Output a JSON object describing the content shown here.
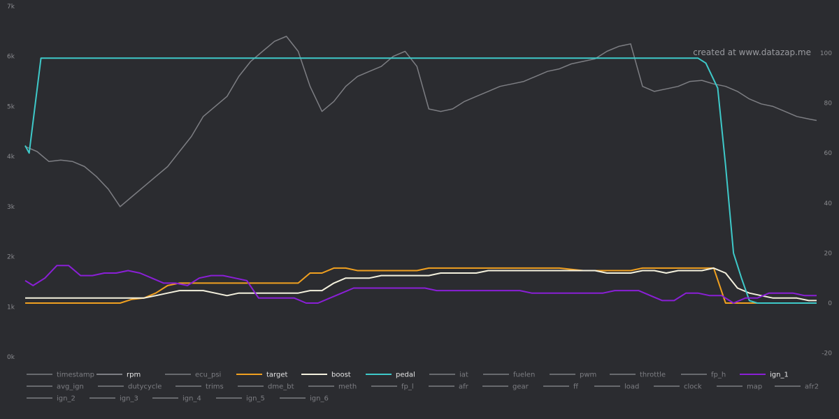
{
  "chart_data": {
    "type": "line",
    "watermark": "created at www.datazap.me",
    "left_axis": {
      "ticks": [
        "0k",
        "1k",
        "2k",
        "3k",
        "4k",
        "5k",
        "6k",
        "7k"
      ],
      "range": [
        0,
        7000
      ]
    },
    "right_axis": {
      "ticks": [
        "-20",
        "0",
        "20",
        "40",
        "60",
        "80",
        "100"
      ],
      "range": [
        -20,
        100
      ]
    },
    "x": [
      0,
      1,
      2,
      3,
      4,
      5,
      6,
      7,
      8,
      9,
      10,
      11,
      12,
      13,
      14,
      15,
      16,
      17,
      18,
      19,
      20,
      21,
      22,
      23,
      24,
      25,
      26,
      27,
      28,
      29,
      30,
      31,
      32,
      33,
      34,
      35,
      36,
      37,
      38,
      39,
      40,
      41,
      42,
      43,
      44,
      45,
      46,
      47,
      48,
      49,
      50,
      51,
      52,
      53,
      54,
      55,
      56,
      57,
      58,
      59,
      60,
      61,
      62,
      63,
      64,
      65,
      66,
      67,
      68,
      69,
      70,
      71,
      72,
      73,
      74,
      75,
      76,
      77,
      78,
      79,
      80,
      81,
      82,
      83,
      84,
      85,
      86,
      87,
      88,
      89,
      90,
      91,
      92,
      93,
      94,
      95,
      96,
      97,
      98,
      99,
      100,
      101,
      102,
      103,
      104,
      105,
      106,
      107,
      108,
      109,
      110,
      111,
      112,
      113,
      114,
      115,
      116,
      117,
      118,
      119,
      120,
      121,
      122,
      123,
      124,
      125,
      126,
      127,
      128,
      129,
      130,
      131,
      132,
      133,
      134,
      135,
      136,
      137,
      138,
      139,
      140,
      141,
      142,
      143,
      144,
      145,
      146,
      147,
      148,
      149,
      150,
      151,
      152,
      153,
      154,
      155,
      156,
      157,
      158,
      159,
      160,
      161,
      162,
      163,
      164,
      165,
      166,
      167,
      168,
      169,
      170,
      171,
      172,
      173,
      174,
      175,
      176,
      177,
      178,
      179,
      180,
      181,
      182,
      183,
      184,
      185,
      186,
      187,
      188,
      189,
      190,
      191,
      192,
      193,
      194,
      195,
      196,
      197,
      198,
      199,
      200
    ],
    "series": [
      {
        "name": "rpm",
        "color": "#7d7e83",
        "axis": "left",
        "points": [
          [
            0,
            4200
          ],
          [
            3,
            4100
          ],
          [
            6,
            3900
          ],
          [
            9,
            3930
          ],
          [
            12,
            3900
          ],
          [
            15,
            3800
          ],
          [
            18,
            3600
          ],
          [
            21,
            3350
          ],
          [
            24,
            3000
          ],
          [
            27,
            3200
          ],
          [
            30,
            3400
          ],
          [
            33,
            3600
          ],
          [
            36,
            3800
          ],
          [
            39,
            4100
          ],
          [
            42,
            4400
          ],
          [
            45,
            4800
          ],
          [
            48,
            5000
          ],
          [
            51,
            5200
          ],
          [
            54,
            5600
          ],
          [
            57,
            5900
          ],
          [
            60,
            6100
          ],
          [
            63,
            6300
          ],
          [
            66,
            6400
          ],
          [
            69,
            6100
          ],
          [
            72,
            5400
          ],
          [
            75,
            4900
          ],
          [
            78,
            5100
          ],
          [
            81,
            5400
          ],
          [
            84,
            5600
          ],
          [
            87,
            5700
          ],
          [
            90,
            5800
          ],
          [
            93,
            6000
          ],
          [
            96,
            6100
          ],
          [
            99,
            5800
          ],
          [
            102,
            4950
          ],
          [
            105,
            4900
          ],
          [
            108,
            4950
          ],
          [
            111,
            5100
          ],
          [
            114,
            5200
          ],
          [
            117,
            5300
          ],
          [
            120,
            5400
          ],
          [
            123,
            5450
          ],
          [
            126,
            5500
          ],
          [
            129,
            5600
          ],
          [
            132,
            5700
          ],
          [
            135,
            5750
          ],
          [
            138,
            5850
          ],
          [
            141,
            5900
          ],
          [
            144,
            5950
          ],
          [
            147,
            6100
          ],
          [
            150,
            6200
          ],
          [
            153,
            6250
          ],
          [
            156,
            5400
          ],
          [
            159,
            5300
          ],
          [
            162,
            5350
          ],
          [
            165,
            5400
          ],
          [
            168,
            5500
          ],
          [
            171,
            5520
          ],
          [
            174,
            5450
          ],
          [
            177,
            5400
          ],
          [
            180,
            5300
          ],
          [
            183,
            5150
          ],
          [
            186,
            5050
          ],
          [
            189,
            5000
          ],
          [
            192,
            4900
          ],
          [
            195,
            4800
          ],
          [
            198,
            4750
          ],
          [
            200,
            4720
          ]
        ]
      },
      {
        "name": "target",
        "color": "#f0a020",
        "axis": "right",
        "points": [
          [
            0,
            0
          ],
          [
            21,
            0
          ],
          [
            24,
            0
          ],
          [
            27,
            1.5
          ],
          [
            30,
            2
          ],
          [
            33,
            4
          ],
          [
            36,
            7
          ],
          [
            39,
            8
          ],
          [
            42,
            8
          ],
          [
            48,
            8
          ],
          [
            54,
            8
          ],
          [
            60,
            8
          ],
          [
            66,
            8
          ],
          [
            69,
            8
          ],
          [
            72,
            12
          ],
          [
            75,
            12
          ],
          [
            78,
            14
          ],
          [
            81,
            14
          ],
          [
            84,
            13
          ],
          [
            90,
            13
          ],
          [
            96,
            13
          ],
          [
            99,
            13
          ],
          [
            102,
            14
          ],
          [
            105,
            14
          ],
          [
            111,
            14
          ],
          [
            117,
            14
          ],
          [
            123,
            14
          ],
          [
            129,
            14
          ],
          [
            135,
            14
          ],
          [
            141,
            13
          ],
          [
            147,
            13
          ],
          [
            153,
            13
          ],
          [
            156,
            14
          ],
          [
            162,
            14
          ],
          [
            168,
            14
          ],
          [
            174,
            14
          ],
          [
            177,
            0
          ],
          [
            180,
            0
          ],
          [
            183,
            0
          ],
          [
            200,
            0
          ]
        ]
      },
      {
        "name": "boost",
        "color": "#f4f1de",
        "axis": "right",
        "points": [
          [
            0,
            2
          ],
          [
            6,
            2
          ],
          [
            12,
            2
          ],
          [
            18,
            2
          ],
          [
            24,
            2
          ],
          [
            27,
            2
          ],
          [
            30,
            2
          ],
          [
            33,
            3
          ],
          [
            36,
            4
          ],
          [
            39,
            5
          ],
          [
            42,
            5
          ],
          [
            45,
            5
          ],
          [
            48,
            4
          ],
          [
            51,
            3
          ],
          [
            54,
            4
          ],
          [
            57,
            4
          ],
          [
            60,
            4
          ],
          [
            63,
            4
          ],
          [
            66,
            4
          ],
          [
            69,
            4
          ],
          [
            72,
            5
          ],
          [
            75,
            5
          ],
          [
            78,
            8
          ],
          [
            81,
            10
          ],
          [
            84,
            10
          ],
          [
            87,
            10
          ],
          [
            90,
            11
          ],
          [
            93,
            11
          ],
          [
            96,
            11
          ],
          [
            99,
            11
          ],
          [
            102,
            11
          ],
          [
            105,
            12
          ],
          [
            108,
            12
          ],
          [
            111,
            12
          ],
          [
            114,
            12
          ],
          [
            117,
            13
          ],
          [
            120,
            13
          ],
          [
            123,
            13
          ],
          [
            126,
            13
          ],
          [
            129,
            13
          ],
          [
            132,
            13
          ],
          [
            135,
            13
          ],
          [
            138,
            13
          ],
          [
            141,
            13
          ],
          [
            144,
            13
          ],
          [
            147,
            12
          ],
          [
            150,
            12
          ],
          [
            153,
            12
          ],
          [
            156,
            13
          ],
          [
            159,
            13
          ],
          [
            162,
            12
          ],
          [
            165,
            13
          ],
          [
            168,
            13
          ],
          [
            171,
            13
          ],
          [
            174,
            14
          ],
          [
            177,
            12
          ],
          [
            180,
            6
          ],
          [
            183,
            4
          ],
          [
            186,
            3
          ],
          [
            189,
            2
          ],
          [
            192,
            2
          ],
          [
            195,
            2
          ],
          [
            198,
            1
          ],
          [
            200,
            1
          ]
        ]
      },
      {
        "name": "pedal",
        "color": "#3ec9c9",
        "axis": "right",
        "points": [
          [
            0,
            63
          ],
          [
            1,
            60
          ],
          [
            4,
            98
          ],
          [
            10,
            98
          ],
          [
            20,
            98
          ],
          [
            40,
            98
          ],
          [
            60,
            98
          ],
          [
            80,
            98
          ],
          [
            100,
            98
          ],
          [
            120,
            98
          ],
          [
            140,
            98
          ],
          [
            160,
            98
          ],
          [
            170,
            98
          ],
          [
            172,
            96
          ],
          [
            175,
            86
          ],
          [
            177,
            55
          ],
          [
            179,
            20
          ],
          [
            181,
            10
          ],
          [
            183,
            1
          ],
          [
            185,
            0
          ],
          [
            190,
            0
          ],
          [
            200,
            0
          ]
        ]
      },
      {
        "name": "ign_1",
        "color": "#8a1fd6",
        "axis": "right",
        "points": [
          [
            0,
            9
          ],
          [
            2,
            7
          ],
          [
            5,
            10
          ],
          [
            8,
            15
          ],
          [
            11,
            15
          ],
          [
            14,
            11
          ],
          [
            17,
            11
          ],
          [
            20,
            12
          ],
          [
            23,
            12
          ],
          [
            26,
            13
          ],
          [
            29,
            12
          ],
          [
            32,
            10
          ],
          [
            35,
            8
          ],
          [
            38,
            8
          ],
          [
            41,
            7
          ],
          [
            44,
            10
          ],
          [
            47,
            11
          ],
          [
            50,
            11
          ],
          [
            53,
            10
          ],
          [
            56,
            9
          ],
          [
            59,
            2
          ],
          [
            62,
            2
          ],
          [
            65,
            2
          ],
          [
            68,
            2
          ],
          [
            71,
            0
          ],
          [
            74,
            0
          ],
          [
            77,
            2
          ],
          [
            80,
            4
          ],
          [
            83,
            6
          ],
          [
            86,
            6
          ],
          [
            89,
            6
          ],
          [
            92,
            6
          ],
          [
            95,
            6
          ],
          [
            98,
            6
          ],
          [
            101,
            6
          ],
          [
            104,
            5
          ],
          [
            107,
            5
          ],
          [
            110,
            5
          ],
          [
            113,
            5
          ],
          [
            116,
            5
          ],
          [
            119,
            5
          ],
          [
            122,
            5
          ],
          [
            125,
            5
          ],
          [
            128,
            4
          ],
          [
            131,
            4
          ],
          [
            134,
            4
          ],
          [
            137,
            4
          ],
          [
            140,
            4
          ],
          [
            143,
            4
          ],
          [
            146,
            4
          ],
          [
            149,
            5
          ],
          [
            152,
            5
          ],
          [
            155,
            5
          ],
          [
            158,
            3
          ],
          [
            161,
            1
          ],
          [
            164,
            1
          ],
          [
            167,
            4
          ],
          [
            170,
            4
          ],
          [
            173,
            3
          ],
          [
            176,
            3
          ],
          [
            179,
            0
          ],
          [
            182,
            2
          ],
          [
            185,
            2
          ],
          [
            188,
            4
          ],
          [
            191,
            4
          ],
          [
            194,
            4
          ],
          [
            197,
            3
          ],
          [
            200,
            3
          ]
        ]
      }
    ],
    "legend": [
      [
        "timestamp",
        "rpm",
        "ecu_psi",
        "target",
        "boost",
        "pedal",
        "iat",
        "fuelen",
        "pwm",
        "throttle",
        "fp_h",
        "ign_1"
      ],
      [
        "avg_ign",
        "dutycycle",
        "trims",
        "dme_bt",
        "meth",
        "fp_l",
        "afr",
        "gear",
        "ff",
        "load",
        "clock",
        "map",
        "afr2"
      ],
      [
        "ign_2",
        "ign_3",
        "ign_4",
        "ign_5",
        "ign_6"
      ]
    ],
    "legend_active": [
      "rpm",
      "target",
      "boost",
      "pedal",
      "ign_1"
    ],
    "legend_colors": {
      "target": "#f0a020",
      "boost": "#f4f1de",
      "pedal": "#3ec9c9",
      "ign_1": "#8a1fd6",
      "default": "#7d7e83"
    }
  }
}
